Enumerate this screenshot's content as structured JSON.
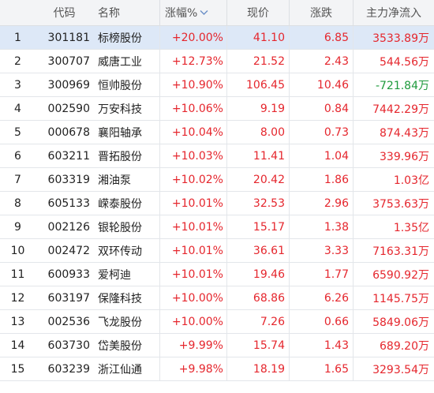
{
  "colors": {
    "up": "#e5262d",
    "down": "#1e9a3c",
    "selected_row": "#dde8f7",
    "header_bg": "#f3f4f6"
  },
  "header": {
    "index": "",
    "code": "代码",
    "name": "名称",
    "change_pct": "涨幅%",
    "price": "现价",
    "change": "涨跌",
    "main_net_inflow": "主力净流入",
    "sort_icon": "chevron-down-icon"
  },
  "rows": [
    {
      "idx": "1",
      "code": "301181",
      "name": "标榜股份",
      "pct": "+20.00%",
      "price": "41.10",
      "chg": "6.85",
      "flow": "3533.89万",
      "flow_dir": "up"
    },
    {
      "idx": "2",
      "code": "300707",
      "name": "威唐工业",
      "pct": "+12.73%",
      "price": "21.52",
      "chg": "2.43",
      "flow": "544.56万",
      "flow_dir": "up"
    },
    {
      "idx": "3",
      "code": "300969",
      "name": "恒帅股份",
      "pct": "+10.90%",
      "price": "106.45",
      "chg": "10.46",
      "flow": "-721.84万",
      "flow_dir": "down"
    },
    {
      "idx": "4",
      "code": "002590",
      "name": "万安科技",
      "pct": "+10.06%",
      "price": "9.19",
      "chg": "0.84",
      "flow": "7442.29万",
      "flow_dir": "up"
    },
    {
      "idx": "5",
      "code": "000678",
      "name": "襄阳轴承",
      "pct": "+10.04%",
      "price": "8.00",
      "chg": "0.73",
      "flow": "874.43万",
      "flow_dir": "up"
    },
    {
      "idx": "6",
      "code": "603211",
      "name": "晋拓股份",
      "pct": "+10.03%",
      "price": "11.41",
      "chg": "1.04",
      "flow": "339.96万",
      "flow_dir": "up"
    },
    {
      "idx": "7",
      "code": "603319",
      "name": "湘油泵",
      "pct": "+10.02%",
      "price": "20.42",
      "chg": "1.86",
      "flow": "1.03亿",
      "flow_dir": "up"
    },
    {
      "idx": "8",
      "code": "605133",
      "name": "嵘泰股份",
      "pct": "+10.01%",
      "price": "32.53",
      "chg": "2.96",
      "flow": "3753.63万",
      "flow_dir": "up"
    },
    {
      "idx": "9",
      "code": "002126",
      "name": "银轮股份",
      "pct": "+10.01%",
      "price": "15.17",
      "chg": "1.38",
      "flow": "1.35亿",
      "flow_dir": "up"
    },
    {
      "idx": "10",
      "code": "002472",
      "name": "双环传动",
      "pct": "+10.01%",
      "price": "36.61",
      "chg": "3.33",
      "flow": "7163.31万",
      "flow_dir": "up"
    },
    {
      "idx": "11",
      "code": "600933",
      "name": "爱柯迪",
      "pct": "+10.01%",
      "price": "19.46",
      "chg": "1.77",
      "flow": "6590.92万",
      "flow_dir": "up"
    },
    {
      "idx": "12",
      "code": "603197",
      "name": "保隆科技",
      "pct": "+10.00%",
      "price": "68.86",
      "chg": "6.26",
      "flow": "1145.75万",
      "flow_dir": "up"
    },
    {
      "idx": "13",
      "code": "002536",
      "name": "飞龙股份",
      "pct": "+10.00%",
      "price": "7.26",
      "chg": "0.66",
      "flow": "5849.06万",
      "flow_dir": "up"
    },
    {
      "idx": "14",
      "code": "603730",
      "name": "岱美股份",
      "pct": "+9.99%",
      "price": "15.74",
      "chg": "1.43",
      "flow": "689.20万",
      "flow_dir": "up"
    },
    {
      "idx": "15",
      "code": "603239",
      "name": "浙江仙通",
      "pct": "+9.98%",
      "price": "18.19",
      "chg": "1.65",
      "flow": "3293.54万",
      "flow_dir": "up"
    }
  ],
  "selected_row": 0
}
